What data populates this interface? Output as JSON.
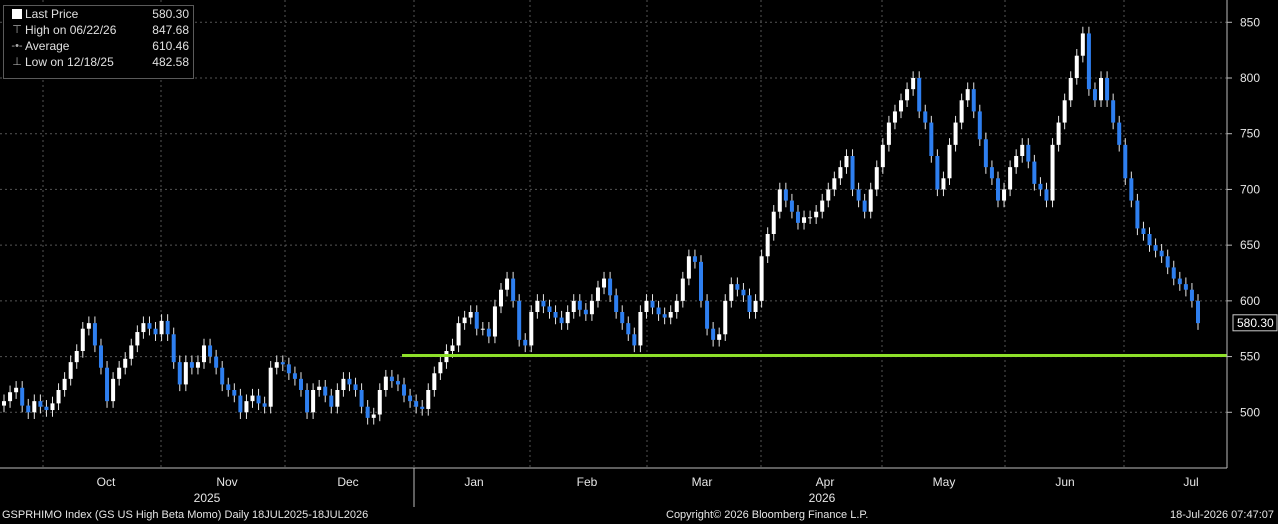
{
  "legend": {
    "last_label": "Last Price",
    "last_value": "580.30",
    "high_label": "High on 06/22/26",
    "high_value": "847.68",
    "avg_label": "Average",
    "avg_value": "610.46",
    "low_label": "Low on 12/18/25",
    "low_value": "482.58"
  },
  "footer": {
    "left": "GSPRHIMO Index (GS US High Beta Momo) Daily 18JUL2025-18JUL2026",
    "center": "Copyright© 2026 Bloomberg Finance L.P.",
    "right": "18-Jul-2026 07:47:07"
  },
  "colors": {
    "up": "#ffffff",
    "down": "#2e7ff0",
    "support": "#8ee02a",
    "grid": "#555555"
  },
  "chart_data": {
    "type": "candlestick",
    "title": "",
    "ylim": [
      450,
      870
    ],
    "yticks": [
      500,
      550,
      600,
      650,
      700,
      750,
      800,
      850
    ],
    "months": [
      "Oct",
      "Nov",
      "Dec",
      "Jan",
      "Feb",
      "Mar",
      "Apr",
      "May",
      "Jun",
      "Jul"
    ],
    "years": [
      "2025",
      "2026"
    ],
    "last_price_tag": "580.30",
    "support_level": 551,
    "grid": true,
    "close": [
      510,
      518,
      522,
      506,
      500,
      510,
      505,
      502,
      508,
      520,
      530,
      545,
      555,
      575,
      580,
      560,
      540,
      510,
      530,
      540,
      548,
      560,
      572,
      580,
      575,
      570,
      582,
      570,
      545,
      525,
      545,
      540,
      545,
      560,
      550,
      540,
      525,
      520,
      515,
      500,
      510,
      515,
      508,
      505,
      540,
      545,
      543,
      535,
      530,
      520,
      500,
      520,
      523,
      515,
      505,
      520,
      530,
      525,
      520,
      505,
      495,
      498,
      520,
      532,
      528,
      525,
      515,
      510,
      505,
      503,
      520,
      535,
      545,
      555,
      560,
      580,
      585,
      590,
      575,
      575,
      568,
      595,
      610,
      620,
      600,
      565,
      560,
      590,
      600,
      595,
      590,
      585,
      580,
      590,
      600,
      592,
      588,
      600,
      612,
      620,
      605,
      590,
      580,
      570,
      560,
      590,
      600,
      594,
      588,
      585,
      590,
      600,
      620,
      640,
      635,
      600,
      575,
      565,
      570,
      600,
      615,
      610,
      605,
      590,
      600,
      640,
      660,
      680,
      700,
      690,
      680,
      670,
      675,
      675,
      680,
      690,
      700,
      710,
      720,
      730,
      700,
      690,
      680,
      700,
      720,
      740,
      760,
      770,
      780,
      790,
      800,
      770,
      760,
      730,
      700,
      710,
      740,
      760,
      780,
      790,
      770,
      745,
      720,
      710,
      690,
      700,
      720,
      730,
      740,
      725,
      705,
      700,
      690,
      740,
      760,
      780,
      800,
      820,
      840,
      790,
      780,
      800,
      780,
      760,
      740,
      710,
      690,
      665,
      660,
      650,
      645,
      640,
      630,
      620,
      615,
      610,
      600,
      580
    ],
    "start_date": "2025-07-18"
  }
}
